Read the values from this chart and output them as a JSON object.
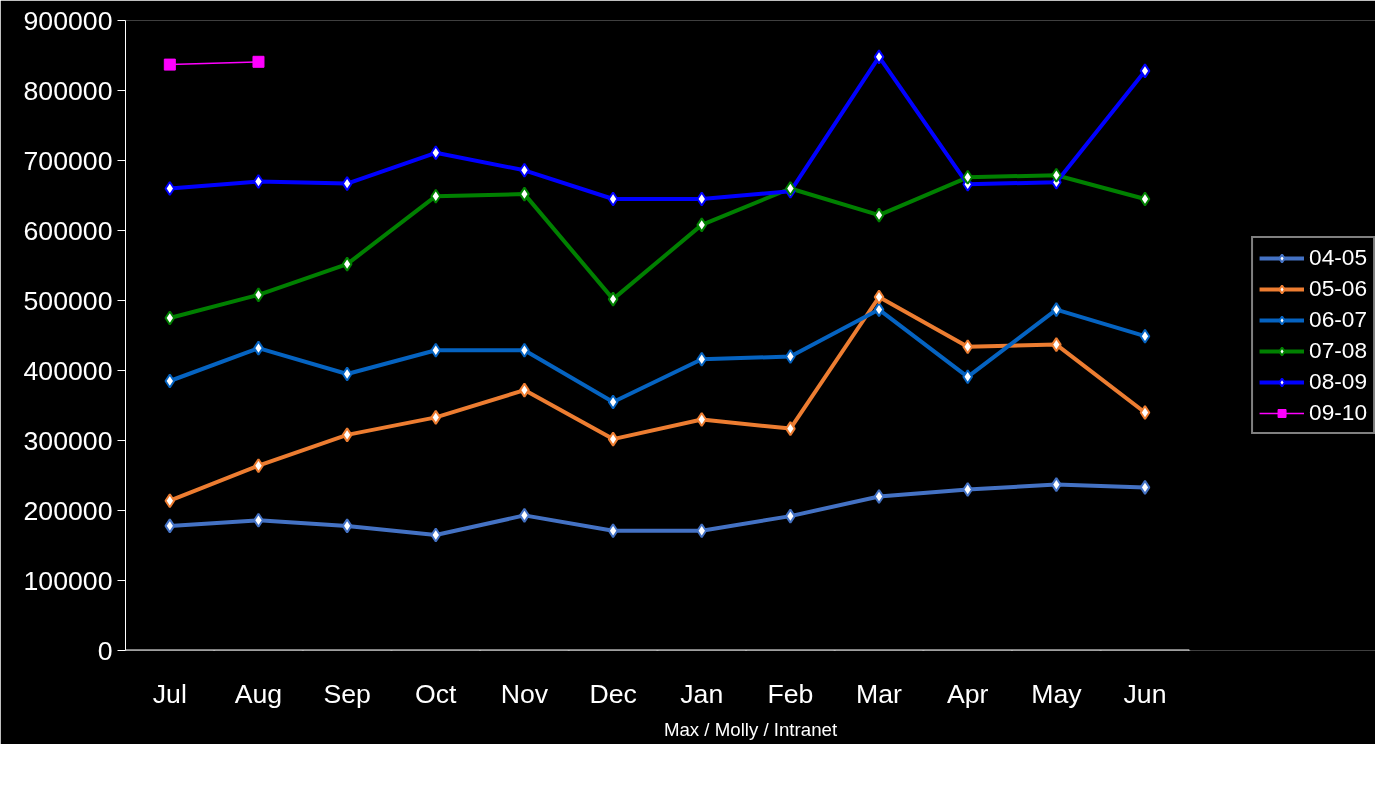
{
  "chart_data": {
    "type": "line",
    "categories": [
      "Jul",
      "Aug",
      "Sep",
      "Oct",
      "Nov",
      "Dec",
      "Jan",
      "Feb",
      "Mar",
      "Apr",
      "May",
      "Jun"
    ],
    "ylim": [
      0,
      900000
    ],
    "yticks": [
      0,
      100000,
      200000,
      300000,
      400000,
      500000,
      600000,
      700000,
      800000,
      900000
    ],
    "grid": false,
    "legend": "right",
    "marker": "diamond",
    "line_style": "solid",
    "annotations": [
      "Max / Molly / Intranet"
    ],
    "series": [
      {
        "name": "04-05",
        "color": "#4472c4",
        "values": [
          178000,
          186000,
          178000,
          165000,
          193000,
          171000,
          171000,
          192000,
          220000,
          230000,
          237000,
          233000
        ]
      },
      {
        "name": "05-06",
        "color": "#ed7d31",
        "values": [
          214000,
          264000,
          308000,
          333000,
          372000,
          302000,
          330000,
          317000,
          505000,
          434000,
          437000,
          340000
        ]
      },
      {
        "name": "06-07",
        "color": "#0563c1",
        "values": [
          385000,
          432000,
          395000,
          429000,
          429000,
          355000,
          416000,
          420000,
          487000,
          391000,
          487000,
          449000
        ]
      },
      {
        "name": "07-08",
        "color": "#008000",
        "values": [
          475000,
          508000,
          552000,
          649000,
          652000,
          502000,
          608000,
          660000,
          622000,
          676000,
          679000,
          645000
        ]
      },
      {
        "name": "08-09",
        "color": "#0000ff",
        "values": [
          660000,
          670000,
          667000,
          711000,
          686000,
          645000,
          645000,
          656000,
          848000,
          666000,
          669000,
          828000
        ]
      },
      {
        "name": "09-10",
        "color": "#ff00ff",
        "marker": "square",
        "values": [
          837000,
          841000,
          null,
          null,
          null,
          null,
          null,
          null,
          null,
          null,
          null,
          null
        ]
      }
    ]
  }
}
